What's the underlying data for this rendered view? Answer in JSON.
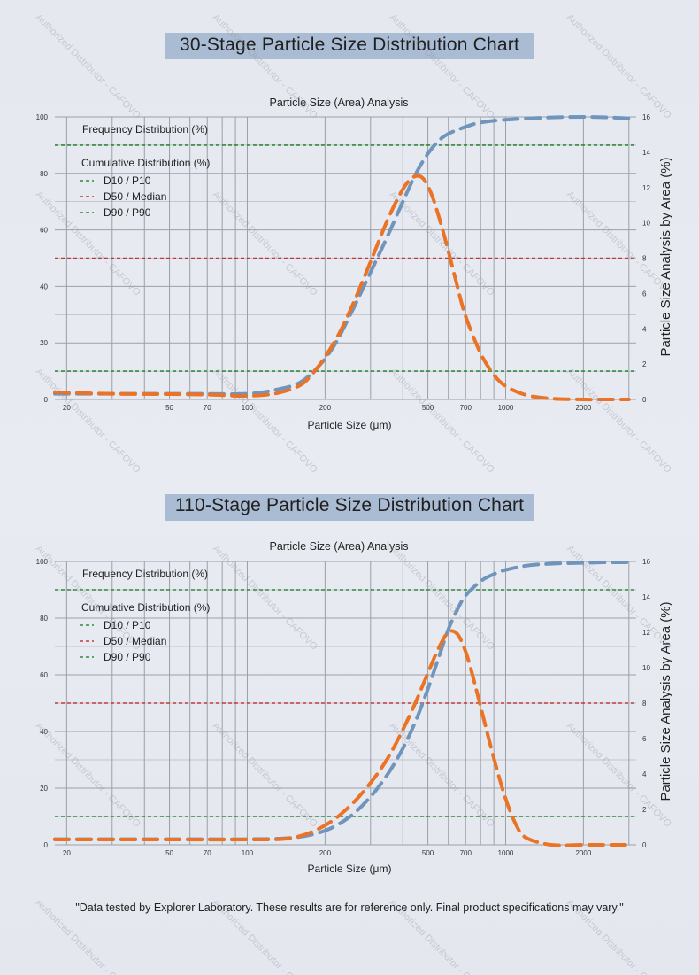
{
  "charts": [
    {
      "heading": "30-Stage Particle Size Distribution Chart",
      "plot_title": "Particle Size (Area) Analysis"
    },
    {
      "heading": "110-Stage Particle Size Distribution Chart",
      "plot_title": "Particle Size (Area) Analysis"
    }
  ],
  "legend": {
    "frequency": "Frequency Distribution (%)",
    "cumulative": "Cumulative Distribution (%)",
    "d10": "D10 / P10",
    "d50": "D50 / Median",
    "d90": "D90 / P90"
  },
  "xlabel": "Particle Size (μm)",
  "ylabel_right": "Particle Size Analysis by Area (%)",
  "footnote": "\"Data tested by Explorer Laboratory. These results are for reference only. Final product specifications may vary.\"",
  "watermark": "Authorized Distributor - CAFOVO",
  "colors": {
    "cumulative": "#6f95bd",
    "frequency": "#ea7325",
    "d10": "#2f8a3a",
    "d50": "#c0393b",
    "d90": "#2f8a3a",
    "grid": "#9aa0a8",
    "banner": "#a9bcd4"
  },
  "chart_data": [
    {
      "type": "line",
      "title": "30-Stage Particle Size Distribution Chart",
      "subtitle": "Particle Size (Area) Analysis",
      "xlabel": "Particle Size (μm)",
      "ylabel": "",
      "ylabel_right": "Particle Size Analysis by Area (%)",
      "x_scale": "log",
      "xlim": [
        18,
        3200
      ],
      "ylim": [
        0,
        100
      ],
      "y2lim": [
        0,
        16
      ],
      "x_ticks": [
        20,
        50,
        70,
        100,
        200,
        500,
        700,
        1000,
        2000
      ],
      "y_ticks": [
        0,
        20,
        40,
        60,
        80,
        100
      ],
      "y2_ticks": [
        0,
        2,
        4,
        6,
        8,
        10,
        12,
        14,
        16
      ],
      "grid": true,
      "legend_position": "top-left",
      "reference_lines": [
        {
          "name": "D10 / P10",
          "y": 10
        },
        {
          "name": "D50 / Median",
          "y": 50
        },
        {
          "name": "D90 / P90",
          "y": 90
        }
      ],
      "series": [
        {
          "name": "Cumulative Distribution (%)",
          "axis": "left",
          "x": [
            18,
            60,
            100,
            130,
            160,
            190,
            220,
            260,
            300,
            350,
            400,
            450,
            500,
            550,
            600,
            700,
            800,
            1000,
            1500,
            2000,
            2500,
            3000
          ],
          "y": [
            2,
            2,
            2,
            3.5,
            6,
            12,
            20,
            33,
            45,
            58,
            70,
            80,
            87,
            91.5,
            94,
            96.5,
            98,
            99,
            99.8,
            100,
            99.8,
            99.5
          ]
        },
        {
          "name": "Frequency Distribution (%)",
          "axis": "right",
          "x": [
            18,
            30,
            50,
            70,
            100,
            130,
            160,
            180,
            200,
            230,
            260,
            300,
            350,
            400,
            440,
            480,
            520,
            560,
            600,
            650,
            700,
            800,
            900,
            1000,
            1200,
            1500,
            2000,
            2500,
            3000
          ],
          "y": [
            0.4,
            0.32,
            0.3,
            0.27,
            0.2,
            0.35,
            0.8,
            1.5,
            2.4,
            3.9,
            5.6,
            7.8,
            10.2,
            11.9,
            12.6,
            12.5,
            11.5,
            10,
            8.4,
            6.4,
            4.7,
            2.6,
            1.4,
            0.75,
            0.25,
            0.05,
            0,
            0,
            0
          ]
        }
      ]
    },
    {
      "type": "line",
      "title": "110-Stage Particle Size Distribution Chart",
      "subtitle": "Particle Size (Area) Analysis",
      "xlabel": "Particle Size (μm)",
      "ylabel": "",
      "ylabel_right": "Particle Size Analysis by Area (%)",
      "x_scale": "log",
      "xlim": [
        18,
        3200
      ],
      "ylim": [
        0,
        100
      ],
      "y2lim": [
        0,
        16
      ],
      "x_ticks": [
        20,
        50,
        70,
        100,
        200,
        500,
        700,
        1000,
        2000
      ],
      "y_ticks": [
        0,
        20,
        40,
        60,
        80,
        100
      ],
      "y2_ticks": [
        0,
        2,
        4,
        6,
        8,
        10,
        12,
        14,
        16
      ],
      "grid": true,
      "legend_position": "top-left",
      "reference_lines": [
        {
          "name": "D10 / P10",
          "y": 10
        },
        {
          "name": "D50 / Median",
          "y": 50
        },
        {
          "name": "D90 / P90",
          "y": 90
        }
      ],
      "series": [
        {
          "name": "Cumulative Distribution (%)",
          "axis": "left",
          "x": [
            18,
            60,
            100,
            150,
            200,
            250,
            300,
            350,
            400,
            450,
            500,
            550,
            600,
            650,
            700,
            800,
            900,
            1000,
            1200,
            1500,
            2000,
            2500,
            3000
          ],
          "y": [
            2,
            2,
            2,
            2.5,
            5,
            10,
            17,
            25,
            34,
            44,
            55,
            66,
            76,
            83,
            88,
            93,
            95.5,
            97,
            98.5,
            99.2,
            99.5,
            99.7,
            99.7
          ]
        },
        {
          "name": "Frequency Distribution (%)",
          "axis": "right",
          "x": [
            18,
            50,
            100,
            150,
            200,
            250,
            300,
            350,
            400,
            450,
            500,
            550,
            600,
            650,
            700,
            750,
            800,
            900,
            1000,
            1100,
            1200,
            1500,
            2000,
            2500,
            3000
          ],
          "y": [
            0.3,
            0.3,
            0.3,
            0.4,
            1.1,
            2.2,
            3.5,
            4.9,
            6.5,
            8.1,
            9.7,
            11.1,
            12,
            11.9,
            10.9,
            9.4,
            7.8,
            4.9,
            2.6,
            1.1,
            0.4,
            0,
            0,
            0,
            0
          ]
        }
      ]
    }
  ]
}
